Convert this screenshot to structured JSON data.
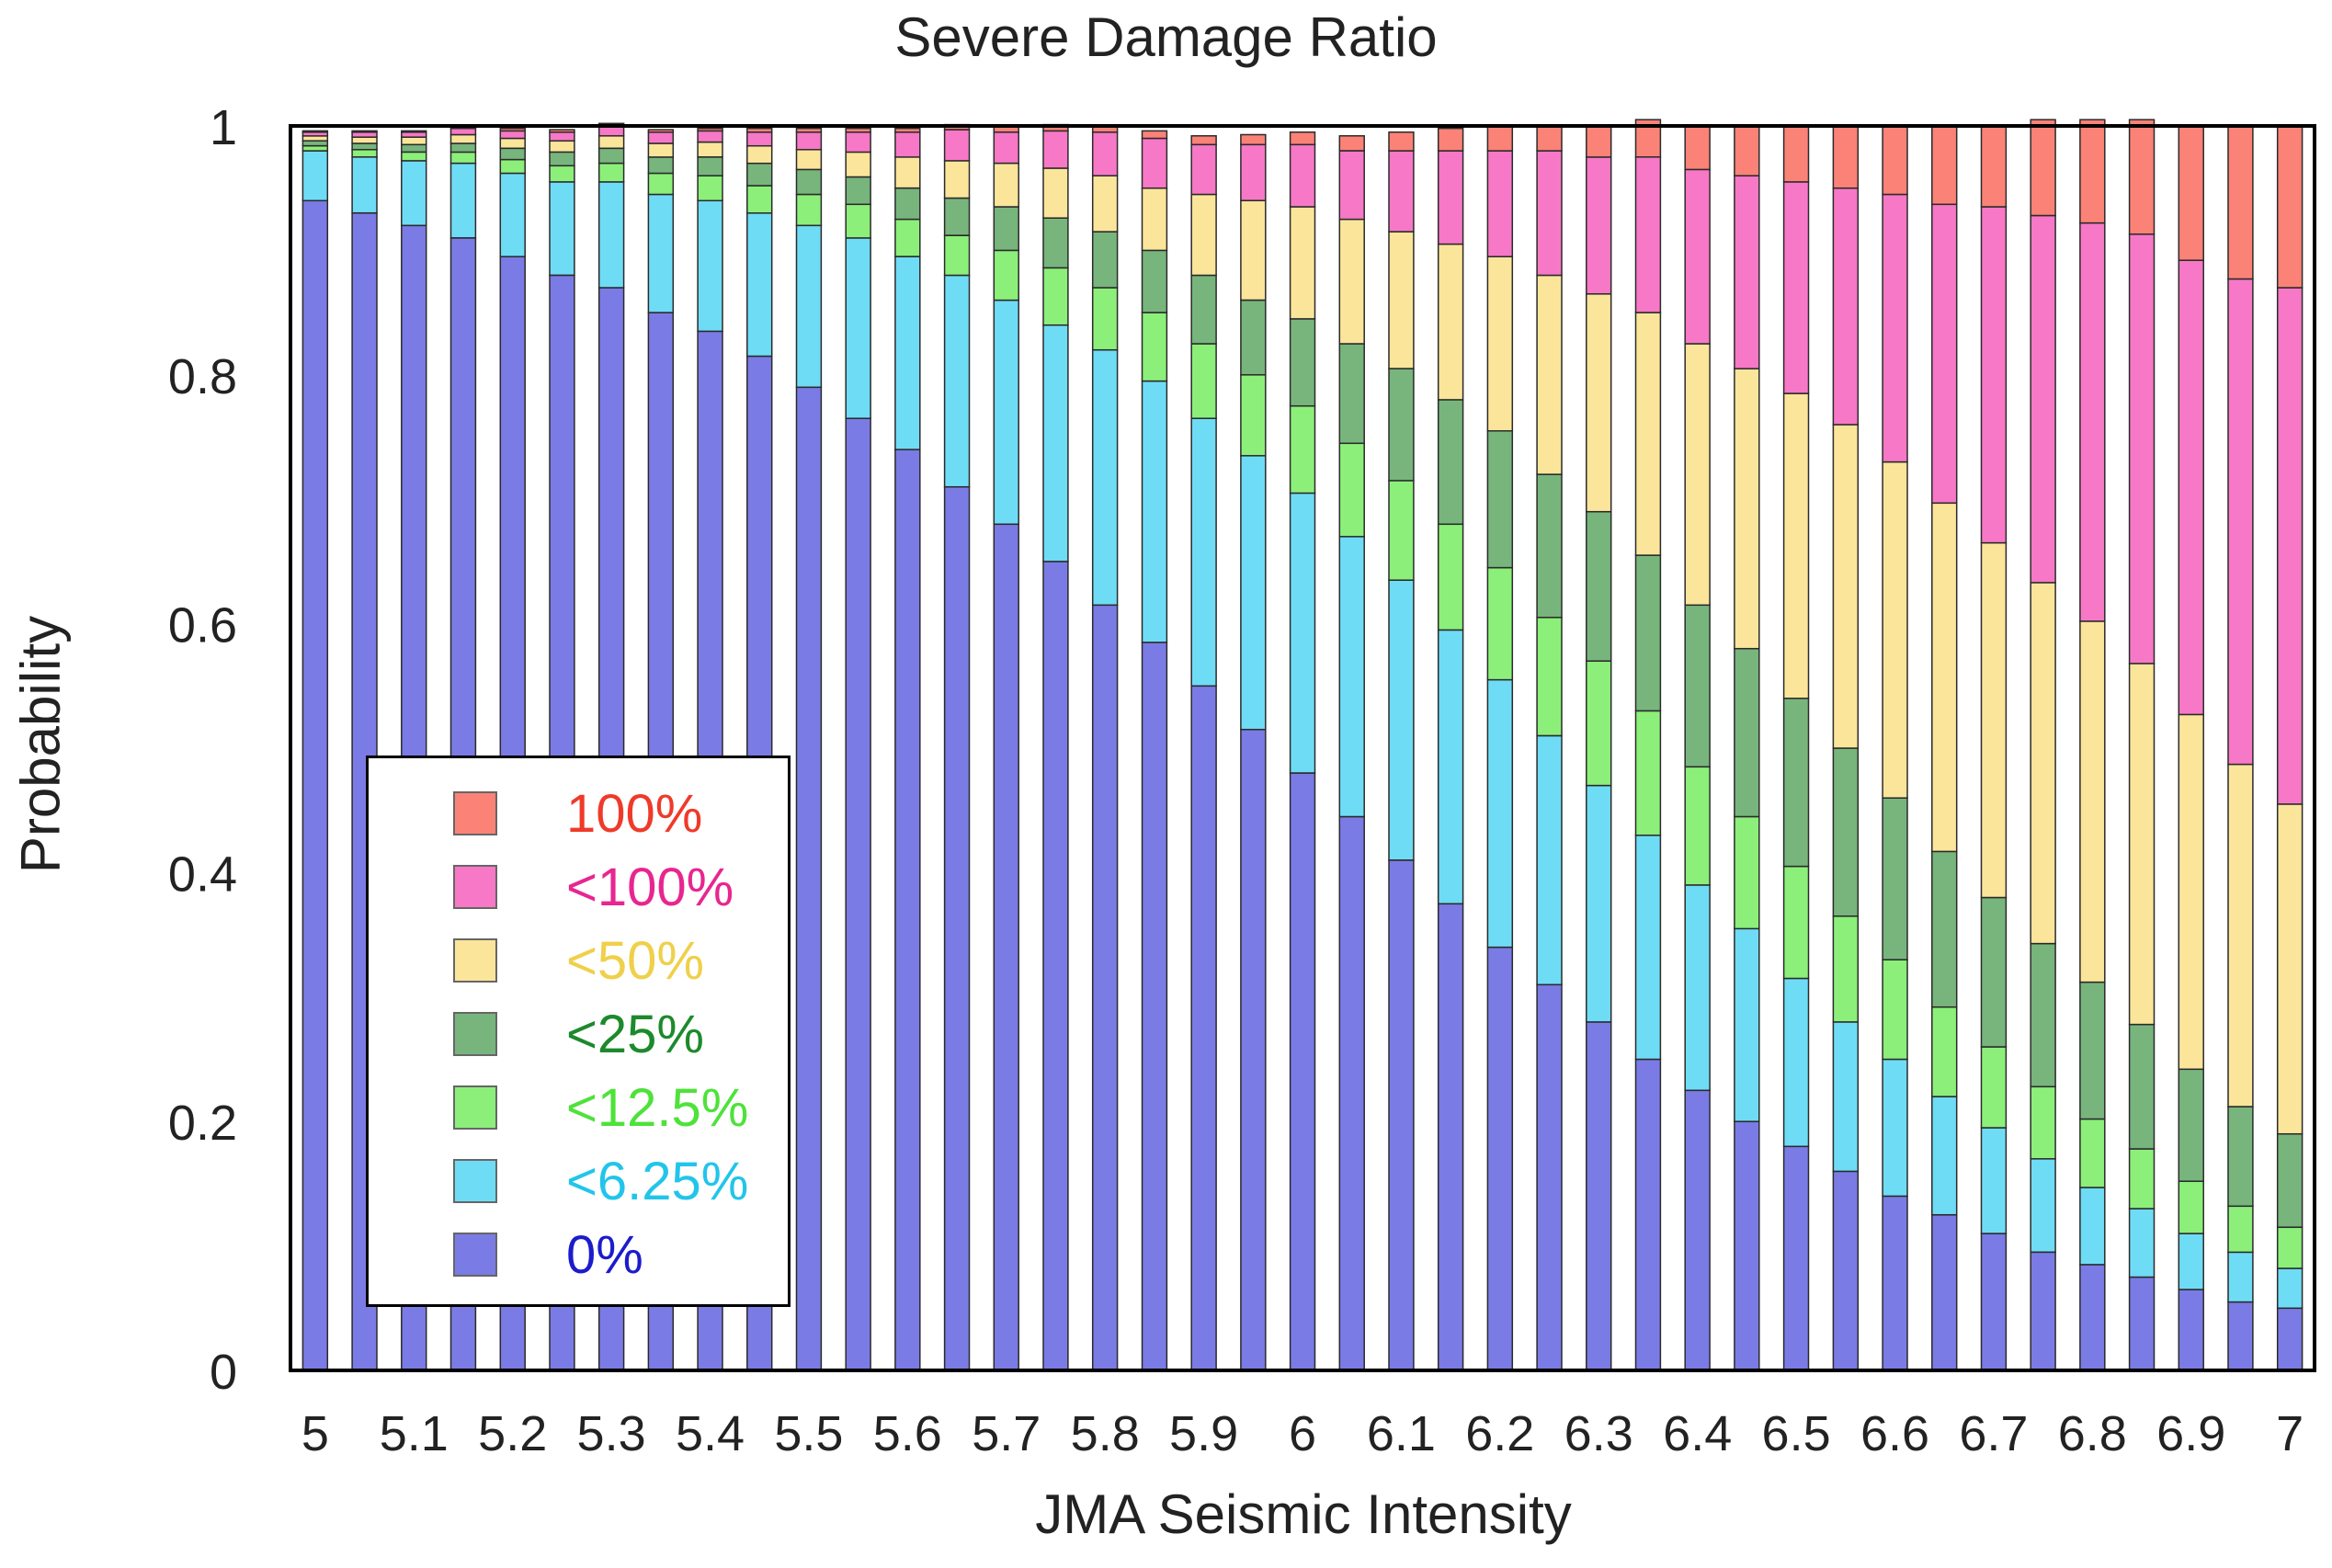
{
  "chart_data": {
    "type": "bar",
    "stacked": true,
    "title": "Severe Damage Ratio",
    "xlabel": "JMA Seismic Intensity",
    "ylabel": "Probability",
    "ylim": [
      0,
      1
    ],
    "yticks": [
      "0",
      "0.2",
      "0.4",
      "0.6",
      "0.8",
      "1"
    ],
    "xtick_labels": [
      "5",
      "5.1",
      "5.2",
      "5.3",
      "5.4",
      "5.5",
      "5.6",
      "5.7",
      "5.8",
      "5.9",
      "6",
      "6.1",
      "6.2",
      "6.3",
      "6.4",
      "6.5",
      "6.6",
      "6.7",
      "6.8",
      "6.9",
      "7"
    ],
    "categories": [
      "5",
      "5.05",
      "5.1",
      "5.15",
      "5.2",
      "5.25",
      "5.3",
      "5.35",
      "5.4",
      "5.45",
      "5.5",
      "5.55",
      "5.6",
      "5.65",
      "5.7",
      "5.75",
      "5.8",
      "5.85",
      "5.9",
      "5.95",
      "6",
      "6.05",
      "6.1",
      "6.15",
      "6.2",
      "6.25",
      "6.3",
      "6.35",
      "6.4",
      "6.45",
      "6.5",
      "6.55",
      "6.6",
      "6.65",
      "6.7",
      "6.75",
      "6.8",
      "6.85",
      "6.9",
      "6.95",
      "7"
    ],
    "series": [
      {
        "name": "0%",
        "color": "#7b7be5",
        "values": [
          0.94,
          0.93,
          0.92,
          0.91,
          0.895,
          0.88,
          0.87,
          0.85,
          0.835,
          0.815,
          0.79,
          0.765,
          0.74,
          0.71,
          0.68,
          0.65,
          0.615,
          0.585,
          0.55,
          0.515,
          0.48,
          0.445,
          0.41,
          0.375,
          0.34,
          0.31,
          0.28,
          0.25,
          0.225,
          0.2,
          0.18,
          0.16,
          0.14,
          0.125,
          0.11,
          0.095,
          0.085,
          0.075,
          0.065,
          0.055,
          0.05
        ]
      },
      {
        "name": "<6.25%",
        "color": "#6fdcf5",
        "values": [
          0.04,
          0.045,
          0.052,
          0.06,
          0.067,
          0.075,
          0.085,
          0.095,
          0.105,
          0.115,
          0.13,
          0.145,
          0.155,
          0.17,
          0.18,
          0.19,
          0.205,
          0.21,
          0.215,
          0.22,
          0.225,
          0.225,
          0.225,
          0.22,
          0.215,
          0.2,
          0.19,
          0.18,
          0.165,
          0.155,
          0.135,
          0.12,
          0.11,
          0.095,
          0.085,
          0.075,
          0.062,
          0.055,
          0.045,
          0.04,
          0.032
        ]
      },
      {
        "name": "<12.5%",
        "color": "#8cef7a",
        "values": [
          0.004,
          0.006,
          0.007,
          0.009,
          0.011,
          0.013,
          0.015,
          0.017,
          0.02,
          0.022,
          0.025,
          0.027,
          0.03,
          0.032,
          0.04,
          0.046,
          0.05,
          0.055,
          0.06,
          0.065,
          0.07,
          0.075,
          0.08,
          0.085,
          0.09,
          0.095,
          0.1,
          0.1,
          0.095,
          0.09,
          0.09,
          0.085,
          0.08,
          0.072,
          0.065,
          0.058,
          0.055,
          0.048,
          0.042,
          0.037,
          0.033
        ]
      },
      {
        "name": "<25%",
        "color": "#77b57d",
        "values": [
          0.004,
          0.005,
          0.006,
          0.007,
          0.009,
          0.011,
          0.012,
          0.013,
          0.015,
          0.018,
          0.02,
          0.022,
          0.025,
          0.03,
          0.035,
          0.04,
          0.045,
          0.05,
          0.055,
          0.06,
          0.07,
          0.08,
          0.09,
          0.1,
          0.11,
          0.115,
          0.12,
          0.125,
          0.13,
          0.135,
          0.135,
          0.135,
          0.13,
          0.125,
          0.12,
          0.115,
          0.11,
          0.1,
          0.09,
          0.08,
          0.075
        ]
      },
      {
        "name": "<50%",
        "color": "#fbe59b",
        "values": [
          0.004,
          0.005,
          0.006,
          0.007,
          0.008,
          0.009,
          0.01,
          0.011,
          0.012,
          0.014,
          0.016,
          0.02,
          0.025,
          0.03,
          0.035,
          0.04,
          0.045,
          0.05,
          0.065,
          0.08,
          0.09,
          0.1,
          0.11,
          0.125,
          0.14,
          0.16,
          0.175,
          0.195,
          0.21,
          0.225,
          0.245,
          0.26,
          0.27,
          0.28,
          0.285,
          0.29,
          0.29,
          0.29,
          0.285,
          0.275,
          0.265
        ]
      },
      {
        "name": "<100%",
        "color": "#f778c6",
        "values": [
          0.003,
          0.004,
          0.004,
          0.005,
          0.006,
          0.007,
          0.008,
          0.009,
          0.009,
          0.011,
          0.014,
          0.016,
          0.02,
          0.025,
          0.025,
          0.03,
          0.035,
          0.04,
          0.04,
          0.045,
          0.05,
          0.055,
          0.065,
          0.075,
          0.085,
          0.1,
          0.11,
          0.125,
          0.14,
          0.155,
          0.17,
          0.19,
          0.215,
          0.24,
          0.27,
          0.295,
          0.32,
          0.345,
          0.365,
          0.39,
          0.415
        ]
      },
      {
        "name": "100%",
        "color": "#fb8277",
        "values": [
          0.001,
          0.001,
          0.001,
          0.002,
          0.002,
          0.002,
          0.002,
          0.002,
          0.002,
          0.003,
          0.003,
          0.003,
          0.003,
          0.004,
          0.005,
          0.005,
          0.005,
          0.006,
          0.007,
          0.008,
          0.01,
          0.012,
          0.015,
          0.018,
          0.02,
          0.02,
          0.025,
          0.03,
          0.035,
          0.04,
          0.045,
          0.05,
          0.055,
          0.063,
          0.065,
          0.077,
          0.083,
          0.092,
          0.108,
          0.123,
          0.13
        ]
      }
    ],
    "legend": {
      "position": "lower-left",
      "items": [
        {
          "label": "100%",
          "color": "#fb8277",
          "text_color": "#ef3a2a"
        },
        {
          "label": "<100%",
          "color": "#f778c6",
          "text_color": "#e8268f"
        },
        {
          "label": "<50%",
          "color": "#fbe59b",
          "text_color": "#efd04a"
        },
        {
          "label": "<25%",
          "color": "#77b57d",
          "text_color": "#1c8a2c"
        },
        {
          "label": "<12.5%",
          "color": "#8cef7a",
          "text_color": "#4ee23a"
        },
        {
          "label": "<6.25%",
          "color": "#6fdcf5",
          "text_color": "#22c5ea"
        },
        {
          "label": "0%",
          "color": "#7b7be5",
          "text_color": "#1c1ccc"
        }
      ]
    }
  }
}
